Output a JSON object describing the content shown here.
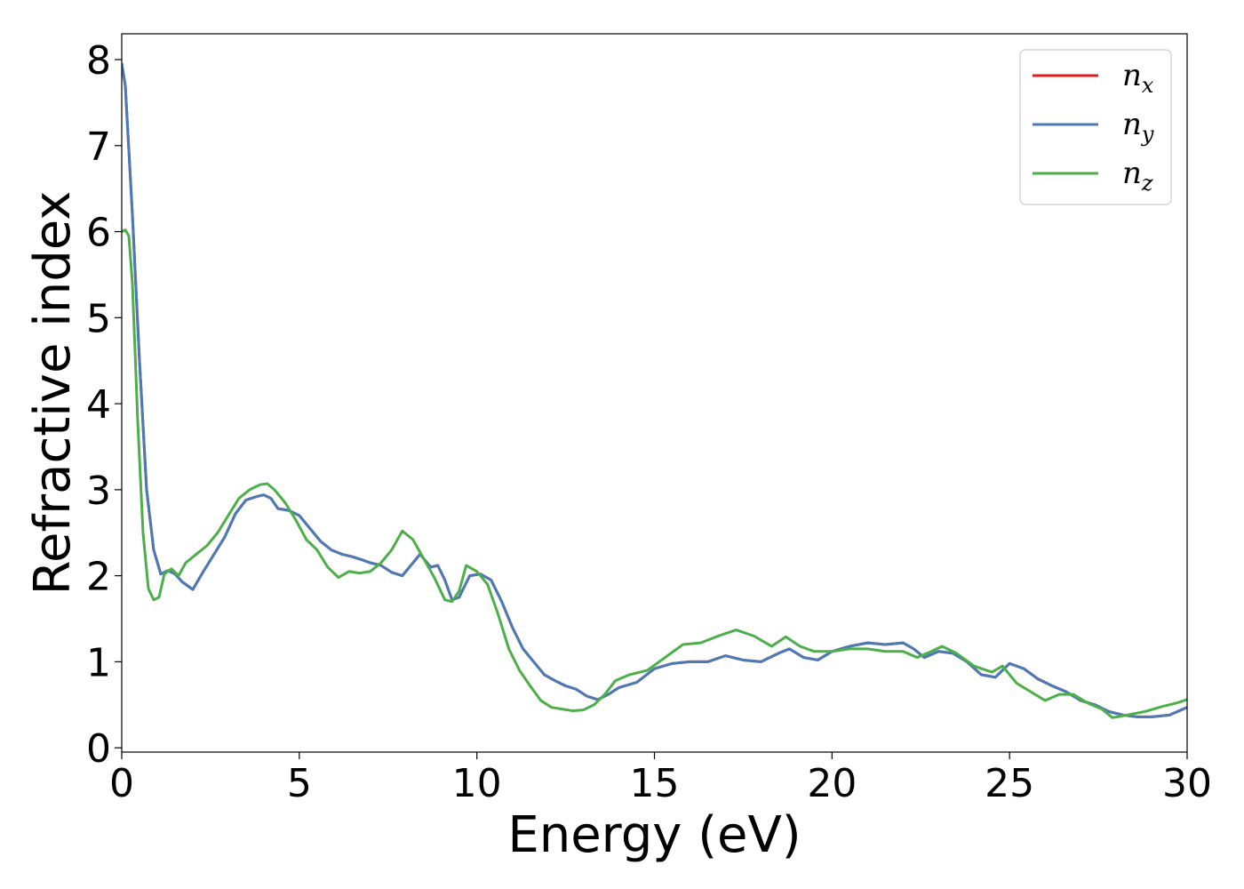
{
  "chart_data": {
    "type": "line",
    "xlabel": "Energy (eV)",
    "ylabel": "Refractive index",
    "xlim": [
      0,
      30
    ],
    "ylim": [
      -0.05,
      8.3
    ],
    "xticks": [
      0,
      5,
      10,
      15,
      20,
      25,
      30
    ],
    "yticks": [
      0,
      1,
      2,
      3,
      4,
      5,
      6,
      7,
      8
    ],
    "grid": false,
    "legend_position": "top-right",
    "series": [
      {
        "name": "n_x",
        "label_base": "n",
        "label_sub": "x",
        "color": "#e41a1c",
        "x": [
          0,
          0.1,
          0.3,
          0.5,
          0.7,
          0.9,
          1.1,
          1.3,
          1.5,
          1.7,
          2.0,
          2.3,
          2.6,
          2.9,
          3.2,
          3.5,
          3.8,
          4.0,
          4.2,
          4.4,
          4.7,
          5.0,
          5.3,
          5.6,
          5.9,
          6.2,
          6.5,
          6.8,
          7.0,
          7.3,
          7.6,
          7.9,
          8.2,
          8.4,
          8.7,
          8.9,
          9.1,
          9.3,
          9.5,
          9.8,
          10.1,
          10.4,
          10.7,
          11.0,
          11.3,
          11.6,
          11.9,
          12.2,
          12.5,
          12.8,
          13.1,
          13.4,
          13.7,
          14.0,
          14.5,
          15.0,
          15.5,
          16.0,
          16.5,
          17.0,
          17.5,
          18.0,
          18.5,
          18.8,
          19.2,
          19.6,
          20.0,
          20.5,
          21.0,
          21.5,
          22.0,
          22.3,
          22.6,
          23.0,
          23.4,
          23.8,
          24.2,
          24.6,
          25.0,
          25.4,
          25.8,
          26.2,
          26.6,
          27.0,
          27.4,
          27.8,
          28.2,
          28.6,
          29.0,
          29.5,
          30.0
        ],
        "y": [
          7.95,
          7.7,
          6.2,
          4.5,
          3.0,
          2.3,
          2.02,
          2.06,
          2.02,
          1.93,
          1.84,
          2.05,
          2.25,
          2.45,
          2.72,
          2.88,
          2.92,
          2.94,
          2.9,
          2.78,
          2.76,
          2.7,
          2.55,
          2.4,
          2.3,
          2.25,
          2.22,
          2.18,
          2.15,
          2.12,
          2.04,
          2.0,
          2.15,
          2.25,
          2.1,
          2.12,
          1.95,
          1.72,
          1.75,
          2.0,
          2.02,
          1.95,
          1.7,
          1.4,
          1.15,
          1.0,
          0.85,
          0.78,
          0.72,
          0.68,
          0.6,
          0.56,
          0.62,
          0.7,
          0.76,
          0.92,
          0.98,
          1.0,
          1.0,
          1.07,
          1.02,
          1.0,
          1.1,
          1.15,
          1.05,
          1.02,
          1.12,
          1.18,
          1.22,
          1.2,
          1.22,
          1.15,
          1.05,
          1.12,
          1.1,
          1.0,
          0.85,
          0.82,
          0.98,
          0.92,
          0.8,
          0.72,
          0.65,
          0.55,
          0.5,
          0.42,
          0.38,
          0.36,
          0.36,
          0.38,
          0.47
        ]
      },
      {
        "name": "n_y",
        "label_base": "n",
        "label_sub": "y",
        "color": "#4a7bb7",
        "x": [
          0,
          0.1,
          0.3,
          0.5,
          0.7,
          0.9,
          1.1,
          1.3,
          1.5,
          1.7,
          2.0,
          2.3,
          2.6,
          2.9,
          3.2,
          3.5,
          3.8,
          4.0,
          4.2,
          4.4,
          4.7,
          5.0,
          5.3,
          5.6,
          5.9,
          6.2,
          6.5,
          6.8,
          7.0,
          7.3,
          7.6,
          7.9,
          8.2,
          8.4,
          8.7,
          8.9,
          9.1,
          9.3,
          9.5,
          9.8,
          10.1,
          10.4,
          10.7,
          11.0,
          11.3,
          11.6,
          11.9,
          12.2,
          12.5,
          12.8,
          13.1,
          13.4,
          13.7,
          14.0,
          14.5,
          15.0,
          15.5,
          16.0,
          16.5,
          17.0,
          17.5,
          18.0,
          18.5,
          18.8,
          19.2,
          19.6,
          20.0,
          20.5,
          21.0,
          21.5,
          22.0,
          22.3,
          22.6,
          23.0,
          23.4,
          23.8,
          24.2,
          24.6,
          25.0,
          25.4,
          25.8,
          26.2,
          26.6,
          27.0,
          27.4,
          27.8,
          28.2,
          28.6,
          29.0,
          29.5,
          30.0
        ],
        "y": [
          7.95,
          7.7,
          6.2,
          4.5,
          3.0,
          2.3,
          2.02,
          2.06,
          2.02,
          1.93,
          1.84,
          2.05,
          2.25,
          2.45,
          2.72,
          2.88,
          2.92,
          2.94,
          2.9,
          2.78,
          2.76,
          2.7,
          2.55,
          2.4,
          2.3,
          2.25,
          2.22,
          2.18,
          2.15,
          2.12,
          2.04,
          2.0,
          2.15,
          2.25,
          2.1,
          2.12,
          1.95,
          1.72,
          1.75,
          2.0,
          2.02,
          1.95,
          1.7,
          1.4,
          1.15,
          1.0,
          0.85,
          0.78,
          0.72,
          0.68,
          0.6,
          0.56,
          0.62,
          0.7,
          0.76,
          0.92,
          0.98,
          1.0,
          1.0,
          1.07,
          1.02,
          1.0,
          1.1,
          1.15,
          1.05,
          1.02,
          1.12,
          1.18,
          1.22,
          1.2,
          1.22,
          1.15,
          1.05,
          1.12,
          1.1,
          1.0,
          0.85,
          0.82,
          0.98,
          0.92,
          0.8,
          0.72,
          0.65,
          0.55,
          0.5,
          0.42,
          0.38,
          0.36,
          0.36,
          0.38,
          0.47
        ]
      },
      {
        "name": "n_z",
        "label_base": "n",
        "label_sub": "z",
        "color": "#4daf4a",
        "x": [
          0,
          0.1,
          0.2,
          0.3,
          0.45,
          0.6,
          0.75,
          0.9,
          1.05,
          1.2,
          1.4,
          1.6,
          1.8,
          2.1,
          2.4,
          2.7,
          3.0,
          3.3,
          3.6,
          3.9,
          4.1,
          4.3,
          4.6,
          4.9,
          5.2,
          5.5,
          5.8,
          6.1,
          6.4,
          6.7,
          7.0,
          7.3,
          7.6,
          7.9,
          8.2,
          8.5,
          8.8,
          9.1,
          9.3,
          9.5,
          9.7,
          10.0,
          10.3,
          10.6,
          10.9,
          11.2,
          11.5,
          11.8,
          12.1,
          12.4,
          12.7,
          13.0,
          13.3,
          13.6,
          13.9,
          14.3,
          14.8,
          15.3,
          15.8,
          16.3,
          16.8,
          17.3,
          17.8,
          18.3,
          18.7,
          19.1,
          19.5,
          20.0,
          20.5,
          21.0,
          21.5,
          22.0,
          22.4,
          22.8,
          23.1,
          23.5,
          24.0,
          24.5,
          24.8,
          25.2,
          25.6,
          26.0,
          26.4,
          26.8,
          27.2,
          27.6,
          27.9,
          28.3,
          28.8,
          29.3,
          29.7,
          30.0
        ],
        "y": [
          6.0,
          6.02,
          5.95,
          5.4,
          3.8,
          2.5,
          1.85,
          1.72,
          1.75,
          2.02,
          2.08,
          2.0,
          2.15,
          2.25,
          2.35,
          2.5,
          2.7,
          2.9,
          3.0,
          3.06,
          3.07,
          3.0,
          2.85,
          2.65,
          2.42,
          2.3,
          2.1,
          1.98,
          2.05,
          2.03,
          2.05,
          2.15,
          2.3,
          2.52,
          2.42,
          2.2,
          1.98,
          1.72,
          1.7,
          1.82,
          2.12,
          2.05,
          1.9,
          1.55,
          1.15,
          0.9,
          0.72,
          0.55,
          0.47,
          0.45,
          0.43,
          0.44,
          0.5,
          0.62,
          0.78,
          0.85,
          0.9,
          1.05,
          1.2,
          1.22,
          1.3,
          1.37,
          1.3,
          1.18,
          1.29,
          1.18,
          1.12,
          1.12,
          1.15,
          1.15,
          1.12,
          1.12,
          1.05,
          1.12,
          1.18,
          1.1,
          0.95,
          0.88,
          0.95,
          0.75,
          0.65,
          0.55,
          0.62,
          0.62,
          0.52,
          0.45,
          0.35,
          0.38,
          0.42,
          0.48,
          0.52,
          0.56
        ]
      }
    ]
  }
}
